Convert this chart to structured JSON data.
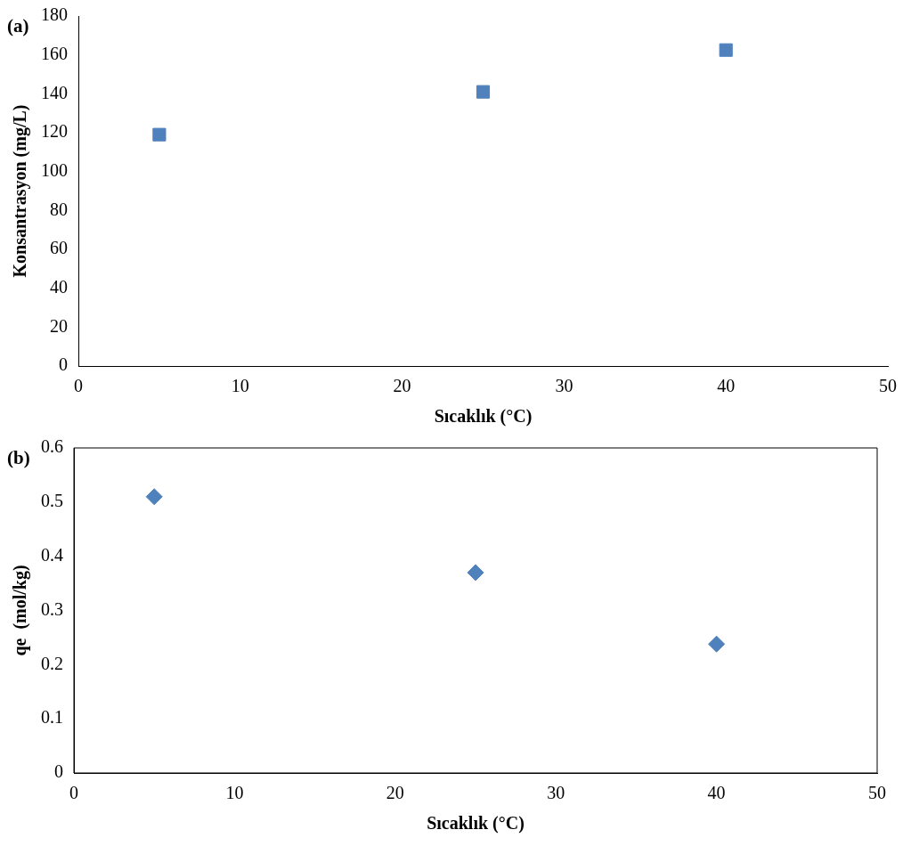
{
  "chart_data": [
    {
      "type": "scatter",
      "annotations": [
        "(a)"
      ],
      "xlabel": "Sıcaklık (°C)",
      "ylabel": "Konsantrasyon (mg/L)",
      "x": [
        5,
        25,
        40
      ],
      "series": [
        {
          "color": "#4f81bd",
          "values": [
            119,
            141,
            162.5
          ]
        }
      ],
      "xlim": [
        0,
        50
      ],
      "xticks": [
        0,
        10,
        20,
        30,
        40,
        50
      ],
      "ylim": [
        0,
        180
      ],
      "yticks": [
        0,
        20,
        40,
        60,
        80,
        100,
        120,
        140,
        160,
        180
      ],
      "grid": false,
      "legend": false,
      "marker": "square"
    },
    {
      "type": "scatter",
      "annotations": [
        "(b)"
      ],
      "xlabel": "Sıcaklık (°C)",
      "ylabel": "qe  (mol/kg)",
      "x": [
        5,
        25,
        40
      ],
      "series": [
        {
          "color": "#4f81bd",
          "values": [
            0.51,
            0.37,
            0.238
          ]
        }
      ],
      "xlim": [
        0,
        50
      ],
      "xticks": [
        0,
        10,
        20,
        30,
        40,
        50
      ],
      "ylim": [
        0,
        0.6
      ],
      "yticks": [
        0,
        0.1,
        0.2,
        0.3,
        0.4,
        0.5,
        0.6
      ],
      "grid": false,
      "legend": false,
      "marker": "diamond"
    }
  ]
}
